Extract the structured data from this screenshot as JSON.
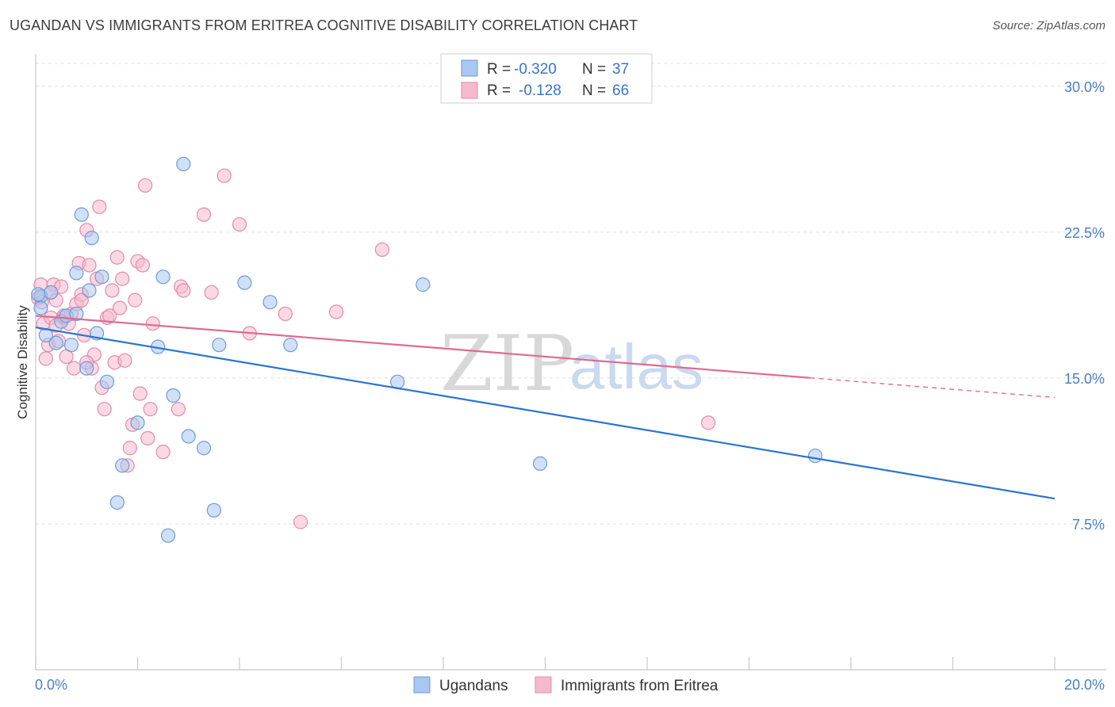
{
  "title": "UGANDAN VS IMMIGRANTS FROM ERITREA COGNITIVE DISABILITY CORRELATION CHART",
  "source": "Source: ZipAtlas.com",
  "colors": {
    "blue": "#a9c7ef",
    "blue_stroke": "#6f9bd8",
    "blue_line": "#2b74d2",
    "pink": "#f5b9cd",
    "pink_stroke": "#e58aa9",
    "pink_line": "#e06a93",
    "tick_text": "#4a7fc8"
  },
  "legend": {
    "rows": [
      {
        "r_label": "R =",
        "r_value": "-0.320",
        "n_label": "N =",
        "n_value": "37"
      },
      {
        "r_label": "R =",
        "r_value": "-0.128",
        "n_label": "N =",
        "n_value": "66"
      }
    ]
  },
  "bottom_legend": [
    "Ugandans",
    "Immigrants from Eritrea"
  ],
  "watermark": {
    "zip": "ZIP",
    "atlas": "atlas"
  },
  "chart_data": {
    "type": "scatter",
    "title": "UGANDAN VS IMMIGRANTS FROM ERITREA COGNITIVE DISABILITY CORRELATION CHART",
    "xlabel": "",
    "ylabel": "Cognitive Disability",
    "xlim": [
      0,
      20
    ],
    "ylim": [
      0,
      31.5
    ],
    "x_tick_labels": [
      "0.0%",
      "20.0%"
    ],
    "y_ticks": [
      7.5,
      15.0,
      22.5,
      30.0
    ],
    "y_tick_labels": [
      "7.5%",
      "15.0%",
      "22.5%",
      "30.0%"
    ],
    "series": [
      {
        "name": "Ugandans",
        "R": -0.32,
        "N": 37,
        "trend": {
          "x0": 0,
          "y0": 17.6,
          "x1": 20,
          "y1": 8.8,
          "dashed_from": null
        },
        "points": [
          [
            0.1,
            19.2
          ],
          [
            0.1,
            18.6
          ],
          [
            0.2,
            17.2
          ],
          [
            0.3,
            19.4
          ],
          [
            0.4,
            16.8
          ],
          [
            0.5,
            17.9
          ],
          [
            0.6,
            18.2
          ],
          [
            0.7,
            16.7
          ],
          [
            0.8,
            18.3
          ],
          [
            0.8,
            20.4
          ],
          [
            0.9,
            23.4
          ],
          [
            1.0,
            15.5
          ],
          [
            1.05,
            19.5
          ],
          [
            1.1,
            22.2
          ],
          [
            1.2,
            17.3
          ],
          [
            1.3,
            20.2
          ],
          [
            1.4,
            14.8
          ],
          [
            1.6,
            8.6
          ],
          [
            1.7,
            10.5
          ],
          [
            2.0,
            12.7
          ],
          [
            2.4,
            16.6
          ],
          [
            2.5,
            20.2
          ],
          [
            2.6,
            6.9
          ],
          [
            2.7,
            14.1
          ],
          [
            2.9,
            26.0
          ],
          [
            3.0,
            12.0
          ],
          [
            3.3,
            11.4
          ],
          [
            3.5,
            8.2
          ],
          [
            3.6,
            16.7
          ],
          [
            4.1,
            19.9
          ],
          [
            4.6,
            18.9
          ],
          [
            5.0,
            16.7
          ],
          [
            7.1,
            14.8
          ],
          [
            7.6,
            19.8
          ],
          [
            9.9,
            10.6
          ],
          [
            15.3,
            11.0
          ],
          [
            0.05,
            19.3
          ]
        ]
      },
      {
        "name": "Immigrants from Eritrea",
        "R": -0.128,
        "N": 66,
        "trend": {
          "x0": 0,
          "y0": 18.2,
          "x1": 20,
          "y1": 14.0,
          "dashed_from": 15.2
        },
        "points": [
          [
            0.05,
            19.1
          ],
          [
            0.1,
            19.8
          ],
          [
            0.15,
            17.8
          ],
          [
            0.2,
            16.0
          ],
          [
            0.25,
            16.7
          ],
          [
            0.3,
            18.1
          ],
          [
            0.35,
            19.8
          ],
          [
            0.4,
            17.7
          ],
          [
            0.45,
            16.9
          ],
          [
            0.5,
            19.7
          ],
          [
            0.55,
            18.1
          ],
          [
            0.6,
            16.1
          ],
          [
            0.65,
            17.8
          ],
          [
            0.7,
            18.3
          ],
          [
            0.75,
            15.5
          ],
          [
            0.8,
            18.8
          ],
          [
            0.85,
            20.9
          ],
          [
            0.9,
            19.3
          ],
          [
            0.95,
            17.2
          ],
          [
            1.0,
            22.6
          ],
          [
            1.05,
            20.8
          ],
          [
            1.1,
            15.5
          ],
          [
            1.15,
            16.2
          ],
          [
            1.2,
            20.1
          ],
          [
            1.25,
            23.8
          ],
          [
            1.3,
            14.5
          ],
          [
            1.35,
            13.4
          ],
          [
            1.4,
            18.1
          ],
          [
            1.45,
            18.2
          ],
          [
            1.5,
            19.5
          ],
          [
            1.55,
            15.8
          ],
          [
            1.6,
            21.2
          ],
          [
            1.65,
            18.6
          ],
          [
            1.7,
            20.1
          ],
          [
            1.75,
            15.9
          ],
          [
            1.8,
            10.5
          ],
          [
            1.85,
            11.4
          ],
          [
            1.9,
            12.6
          ],
          [
            1.95,
            19.0
          ],
          [
            2.0,
            21.0
          ],
          [
            2.05,
            14.2
          ],
          [
            2.1,
            20.8
          ],
          [
            2.15,
            24.9
          ],
          [
            2.2,
            11.9
          ],
          [
            2.25,
            13.4
          ],
          [
            2.3,
            17.8
          ],
          [
            2.5,
            11.2
          ],
          [
            2.8,
            13.4
          ],
          [
            2.85,
            19.7
          ],
          [
            2.9,
            19.5
          ],
          [
            3.3,
            23.4
          ],
          [
            3.45,
            19.4
          ],
          [
            3.7,
            25.4
          ],
          [
            4.0,
            22.9
          ],
          [
            4.2,
            17.3
          ],
          [
            4.9,
            18.3
          ],
          [
            5.2,
            7.6
          ],
          [
            5.9,
            18.4
          ],
          [
            6.8,
            21.6
          ],
          [
            13.2,
            12.7
          ],
          [
            0.12,
            18.9
          ],
          [
            0.3,
            19.4
          ],
          [
            0.9,
            19.0
          ],
          [
            1.0,
            15.8
          ],
          [
            0.55,
            18.2
          ],
          [
            0.4,
            19.0
          ]
        ]
      }
    ]
  }
}
